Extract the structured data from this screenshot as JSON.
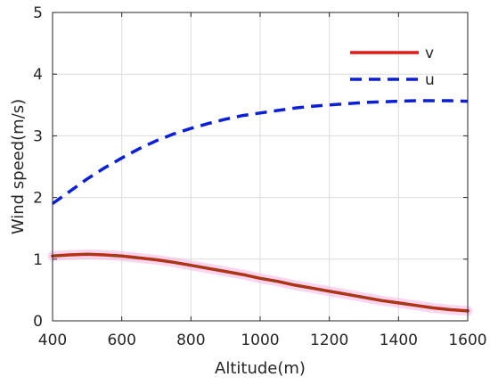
{
  "chart_data": {
    "type": "line",
    "title": "",
    "xlabel": "Altitude(m)",
    "ylabel": "Wind speed(m/s)",
    "xlim": [
      400,
      1600
    ],
    "ylim": [
      0,
      5
    ],
    "xticks": [
      400,
      600,
      800,
      1000,
      1200,
      1400,
      1600
    ],
    "yticks": [
      0,
      1,
      2,
      3,
      4,
      5
    ],
    "grid": true,
    "legend_position": "top-right",
    "series": [
      {
        "name": "v",
        "color": "#e41a1a",
        "style": "solid",
        "x": [
          400,
          450,
          500,
          550,
          600,
          650,
          700,
          750,
          800,
          850,
          900,
          950,
          1000,
          1050,
          1100,
          1150,
          1200,
          1250,
          1300,
          1350,
          1400,
          1450,
          1500,
          1550,
          1600
        ],
        "y": [
          1.05,
          1.07,
          1.08,
          1.07,
          1.05,
          1.02,
          0.99,
          0.95,
          0.9,
          0.85,
          0.8,
          0.75,
          0.69,
          0.64,
          0.58,
          0.53,
          0.48,
          0.43,
          0.38,
          0.33,
          0.29,
          0.25,
          0.21,
          0.18,
          0.16
        ]
      },
      {
        "name": "u",
        "color": "#0a1fd6",
        "style": "dashed",
        "x": [
          400,
          450,
          500,
          550,
          600,
          650,
          700,
          750,
          800,
          850,
          900,
          950,
          1000,
          1050,
          1100,
          1150,
          1200,
          1250,
          1300,
          1350,
          1400,
          1450,
          1500,
          1550,
          1600
        ],
        "y": [
          1.9,
          2.1,
          2.3,
          2.48,
          2.64,
          2.79,
          2.92,
          3.03,
          3.12,
          3.2,
          3.27,
          3.33,
          3.37,
          3.41,
          3.45,
          3.48,
          3.5,
          3.52,
          3.54,
          3.55,
          3.56,
          3.57,
          3.57,
          3.57,
          3.56
        ]
      }
    ]
  }
}
